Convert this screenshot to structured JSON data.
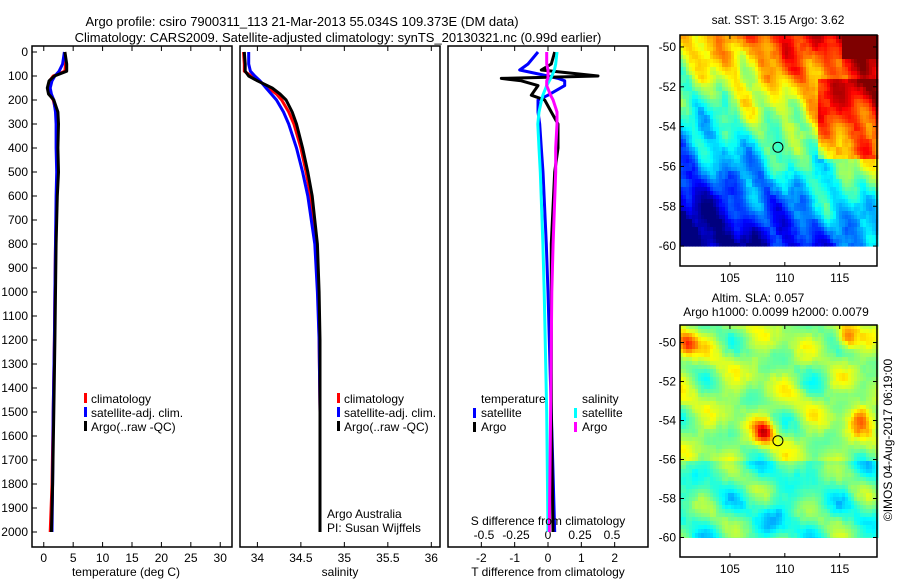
{
  "title_line1": "Argo profile: csiro 7900311_113 21-Mar-2013 55.034S 109.373E (DM data)",
  "title_line2": "Climatology: CARS2009. Satellite-adjusted climatology: synTS_20130321.nc (0.99d earlier)",
  "colors": {
    "climatology": "#ff0000",
    "satellite": "#0000ff",
    "argo": "#000000",
    "sal_satellite": "#00ffff",
    "sal_argo": "#ff00ff"
  },
  "chart_data": [
    {
      "type": "line",
      "id": "temperature",
      "xlabel": "temperature (deg C)",
      "ylabel": "",
      "xlim": [
        -2,
        32
      ],
      "ylim": [
        2080,
        0
      ],
      "xticks": [
        0,
        5,
        10,
        15,
        20,
        25,
        30
      ],
      "yticks": [
        0,
        100,
        200,
        300,
        400,
        500,
        600,
        700,
        800,
        900,
        1000,
        1100,
        1200,
        1300,
        1400,
        1500,
        1600,
        1700,
        1800,
        1900,
        2000
      ],
      "legend": [
        "climatology",
        "satellite-adj. clim.",
        "Argo(..raw -QC)"
      ],
      "depth": [
        0,
        50,
        80,
        100,
        120,
        150,
        175,
        200,
        250,
        300,
        400,
        500,
        600,
        800,
        1000,
        1200,
        1500,
        1800,
        2000
      ],
      "series": [
        {
          "name": "climatology",
          "color": "#ff0000",
          "values": [
            3.6,
            3.7,
            3.6,
            1.6,
            1.0,
            0.8,
            1.0,
            1.6,
            2.1,
            2.2,
            2.2,
            2.4,
            2.2,
            2.0,
            1.9,
            1.8,
            1.6,
            1.4,
            1.1
          ]
        },
        {
          "name": "satellite-adj. clim.",
          "color": "#0000ff",
          "values": [
            3.5,
            3.2,
            2.6,
            1.9,
            1.4,
            1.1,
            1.3,
            1.7,
            2.0,
            2.1,
            2.1,
            2.2,
            2.1,
            2.0,
            1.9,
            1.8,
            1.6,
            1.5,
            1.4
          ]
        },
        {
          "name": "Argo(..raw -QC)",
          "color": "#000000",
          "values": [
            3.6,
            3.9,
            3.9,
            1.8,
            0.9,
            0.6,
            0.8,
            1.7,
            2.4,
            2.5,
            2.4,
            2.5,
            2.3,
            2.1,
            2.0,
            1.9,
            1.7,
            1.5,
            1.3
          ]
        }
      ]
    },
    {
      "type": "line",
      "id": "salinity",
      "xlabel": "salinity",
      "ylabel": "",
      "xlim": [
        33.8,
        36.1
      ],
      "ylim": [
        2080,
        0
      ],
      "xticks": [
        34,
        34.5,
        35,
        35.5,
        36
      ],
      "legend": [
        "climatology",
        "satellite-adj. clim.",
        "Argo(..raw -QC)"
      ],
      "annotation": [
        "Argo Australia",
        "PI: Susan Wijffels"
      ],
      "depth": [
        0,
        50,
        80,
        100,
        120,
        150,
        175,
        200,
        250,
        300,
        400,
        500,
        600,
        800,
        1000,
        1200,
        1500,
        1800,
        2000
      ],
      "series": [
        {
          "name": "climatology",
          "color": "#ff0000",
          "values": [
            33.84,
            33.85,
            33.85,
            33.93,
            34.02,
            34.13,
            34.22,
            34.28,
            34.36,
            34.42,
            34.5,
            34.56,
            34.61,
            34.67,
            34.7,
            34.71,
            34.72,
            34.72,
            34.72
          ]
        },
        {
          "name": "satellite-adj. clim.",
          "color": "#0000ff",
          "values": [
            33.9,
            33.9,
            33.92,
            33.97,
            34.03,
            34.1,
            34.16,
            34.22,
            34.3,
            34.36,
            34.45,
            34.52,
            34.58,
            34.66,
            34.69,
            34.71,
            34.72,
            34.72,
            34.72
          ]
        },
        {
          "name": "Argo(..raw -QC)",
          "color": "#000000",
          "values": [
            33.85,
            33.86,
            33.86,
            33.9,
            34.0,
            34.17,
            34.26,
            34.33,
            34.4,
            34.45,
            34.52,
            34.58,
            34.63,
            34.69,
            34.71,
            34.72,
            34.72,
            34.72,
            34.72
          ]
        }
      ]
    },
    {
      "type": "line",
      "id": "difference",
      "xlabel": "T difference from climatology",
      "x2label": "S difference from climatology",
      "xlim": [
        -3,
        3
      ],
      "x2lim": [
        -0.75,
        0.75
      ],
      "ylim": [
        2080,
        0
      ],
      "xticks": [
        -2,
        -1,
        0,
        1,
        2
      ],
      "x2ticks": [
        "-0.5",
        "-0.25",
        "0",
        "0.25",
        "0.5"
      ],
      "legend": {
        "temperature_title": "temperature",
        "salinity_title": "salinity",
        "temperature": [
          "satellite",
          "Argo"
        ],
        "salinity": [
          "satellite",
          "Argo"
        ]
      },
      "depth": [
        0,
        50,
        75,
        100,
        110,
        120,
        140,
        180,
        200,
        250,
        300,
        400,
        500,
        800,
        1000,
        1500,
        2000
      ],
      "series": [
        {
          "name": "temperature satellite",
          "axis": "T",
          "color": "#0000ff",
          "values": [
            -0.3,
            -0.6,
            -0.85,
            0.0,
            0.3,
            0.5,
            0.5,
            0.0,
            -0.3,
            -0.3,
            -0.25,
            -0.2,
            -0.15,
            -0.05,
            0.0,
            0.1,
            0.2
          ]
        },
        {
          "name": "temperature Argo",
          "axis": "T",
          "color": "#000000",
          "values": [
            0.2,
            0.1,
            -0.2,
            1.5,
            -1.4,
            -0.8,
            -0.3,
            -0.5,
            -0.1,
            0.1,
            0.3,
            0.3,
            0.2,
            0.1,
            0.1,
            0.1,
            0.15
          ]
        },
        {
          "name": "salinity satellite",
          "axis": "S",
          "color": "#00ffff",
          "values": [
            0.07,
            0.06,
            0.05,
            0.03,
            0.02,
            0.01,
            -0.01,
            -0.04,
            -0.05,
            -0.07,
            -0.08,
            -0.07,
            -0.06,
            -0.04,
            -0.03,
            -0.01,
            0.0
          ]
        },
        {
          "name": "salinity Argo",
          "axis": "S",
          "color": "#ff00ff",
          "values": [
            -0.01,
            -0.01,
            0.0,
            0.0,
            0.0,
            -0.01,
            -0.01,
            0.02,
            0.04,
            0.07,
            0.07,
            0.06,
            0.06,
            0.04,
            0.03,
            0.02,
            0.01
          ]
        }
      ]
    },
    {
      "type": "heatmap",
      "id": "sst_map",
      "title": "sat. SST: 3.15 Argo: 3.62",
      "xlim": [
        100.45,
        118.4
      ],
      "ylim": [
        -61,
        -49.4
      ],
      "xticks": [
        105,
        110,
        115
      ],
      "yticks": [
        -50,
        -52,
        -54,
        -56,
        -58,
        -60
      ],
      "argo_position": {
        "lon": 109.373,
        "lat": -55.034
      }
    },
    {
      "type": "heatmap",
      "id": "sla_map",
      "title1": "Altim. SLA: 0.057",
      "title2": "Argo h1000: 0.0099 h2000: 0.0079",
      "xlim": [
        100.45,
        118.4
      ],
      "ylim": [
        -61,
        -49.1
      ],
      "xticks": [
        105,
        110,
        115
      ],
      "yticks": [
        -50,
        -52,
        -54,
        -56,
        -58,
        -60
      ],
      "argo_position": {
        "lon": 109.373,
        "lat": -55.034
      }
    }
  ],
  "credit": "©IMOS 04-Aug-2017 06:19:00"
}
